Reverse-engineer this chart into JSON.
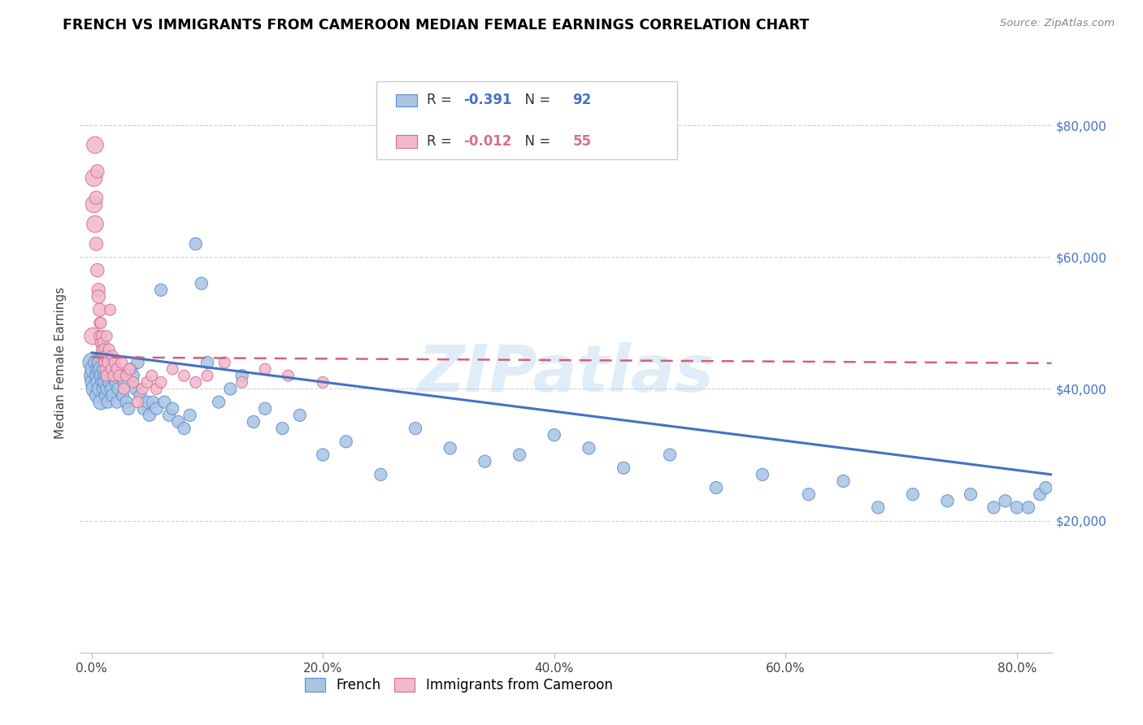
{
  "title": "FRENCH VS IMMIGRANTS FROM CAMEROON MEDIAN FEMALE EARNINGS CORRELATION CHART",
  "source": "Source: ZipAtlas.com",
  "ylabel": "Median Female Earnings",
  "xlabel_ticks": [
    "0.0%",
    "20.0%",
    "40.0%",
    "60.0%",
    "80.0%"
  ],
  "xlabel_values": [
    0.0,
    0.2,
    0.4,
    0.6,
    0.8
  ],
  "ytick_labels": [
    "$20,000",
    "$40,000",
    "$60,000",
    "$80,000"
  ],
  "ytick_values": [
    20000,
    40000,
    60000,
    80000
  ],
  "xlim": [
    -0.01,
    0.83
  ],
  "ylim": [
    0,
    88000
  ],
  "french_color": "#aac4e2",
  "cameroon_color": "#f2b8cb",
  "french_edge_color": "#5b8fd4",
  "cameroon_edge_color": "#d47090",
  "french_line_color": "#4472C4",
  "cameroon_line_color": "#d4607a",
  "watermark": "ZIPatlas",
  "R_french": "-0.391",
  "N_french": "92",
  "R_cameroon": "-0.012",
  "N_cameroon": "55",
  "french_x": [
    0.001,
    0.002,
    0.003,
    0.003,
    0.004,
    0.004,
    0.005,
    0.005,
    0.006,
    0.006,
    0.007,
    0.007,
    0.008,
    0.008,
    0.009,
    0.009,
    0.01,
    0.01,
    0.011,
    0.011,
    0.012,
    0.012,
    0.013,
    0.013,
    0.014,
    0.015,
    0.015,
    0.016,
    0.017,
    0.018,
    0.019,
    0.02,
    0.021,
    0.022,
    0.023,
    0.025,
    0.027,
    0.028,
    0.03,
    0.032,
    0.034,
    0.036,
    0.038,
    0.04,
    0.042,
    0.045,
    0.048,
    0.05,
    0.053,
    0.056,
    0.06,
    0.063,
    0.067,
    0.07,
    0.075,
    0.08,
    0.085,
    0.09,
    0.095,
    0.1,
    0.11,
    0.12,
    0.13,
    0.14,
    0.15,
    0.165,
    0.18,
    0.2,
    0.22,
    0.25,
    0.28,
    0.31,
    0.34,
    0.37,
    0.4,
    0.43,
    0.46,
    0.5,
    0.54,
    0.58,
    0.62,
    0.65,
    0.68,
    0.71,
    0.74,
    0.76,
    0.78,
    0.79,
    0.8,
    0.81,
    0.82,
    0.825
  ],
  "french_y": [
    44000,
    42000,
    41000,
    43000,
    40000,
    44000,
    42000,
    39000,
    43000,
    41000,
    40000,
    44000,
    43000,
    38000,
    42000,
    41000,
    40000,
    43000,
    42000,
    41000,
    39000,
    44000,
    42000,
    40000,
    38000,
    43000,
    41000,
    42000,
    40000,
    39000,
    44000,
    43000,
    41000,
    38000,
    40000,
    42000,
    39000,
    41000,
    38000,
    37000,
    43000,
    42000,
    40000,
    44000,
    39000,
    37000,
    38000,
    36000,
    38000,
    37000,
    55000,
    38000,
    36000,
    37000,
    35000,
    34000,
    36000,
    62000,
    56000,
    44000,
    38000,
    40000,
    42000,
    35000,
    37000,
    34000,
    36000,
    30000,
    32000,
    27000,
    34000,
    31000,
    29000,
    30000,
    33000,
    31000,
    28000,
    30000,
    25000,
    27000,
    24000,
    26000,
    22000,
    24000,
    23000,
    24000,
    22000,
    23000,
    22000,
    22000,
    24000,
    25000
  ],
  "cameroon_x": [
    0.001,
    0.002,
    0.002,
    0.003,
    0.003,
    0.004,
    0.004,
    0.005,
    0.005,
    0.006,
    0.006,
    0.007,
    0.007,
    0.007,
    0.008,
    0.008,
    0.009,
    0.009,
    0.01,
    0.01,
    0.011,
    0.011,
    0.012,
    0.012,
    0.013,
    0.013,
    0.014,
    0.015,
    0.016,
    0.017,
    0.018,
    0.019,
    0.02,
    0.022,
    0.024,
    0.026,
    0.028,
    0.03,
    0.033,
    0.036,
    0.04,
    0.044,
    0.048,
    0.052,
    0.056,
    0.06,
    0.07,
    0.08,
    0.09,
    0.1,
    0.115,
    0.13,
    0.15,
    0.17,
    0.2
  ],
  "cameroon_y": [
    48000,
    72000,
    68000,
    65000,
    77000,
    62000,
    69000,
    73000,
    58000,
    55000,
    54000,
    52000,
    50000,
    48000,
    50000,
    47000,
    46000,
    48000,
    45000,
    47000,
    44000,
    46000,
    43000,
    45000,
    42000,
    48000,
    44000,
    46000,
    52000,
    43000,
    45000,
    42000,
    44000,
    43000,
    42000,
    44000,
    40000,
    42000,
    43000,
    41000,
    38000,
    40000,
    41000,
    42000,
    40000,
    41000,
    43000,
    42000,
    41000,
    42000,
    44000,
    41000,
    43000,
    42000,
    41000
  ],
  "french_trend_x": [
    0.0,
    0.83
  ],
  "french_trend_y": [
    45500,
    27000
  ],
  "cameroon_trend_x": [
    0.0,
    0.83
  ],
  "cameroon_trend_y": [
    44800,
    43900
  ]
}
